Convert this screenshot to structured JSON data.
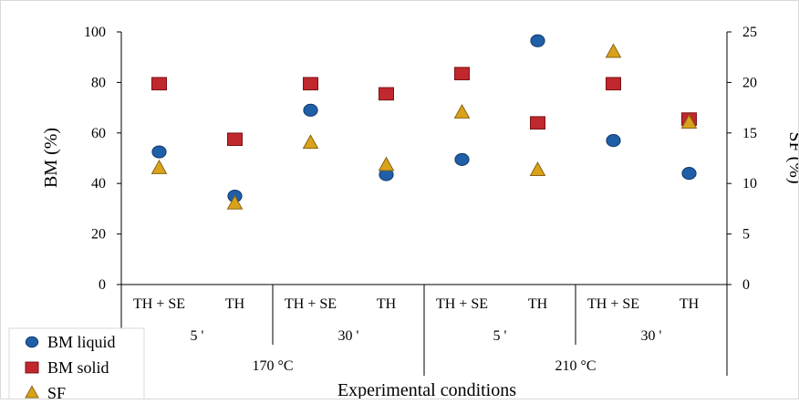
{
  "chart_data": {
    "type": "scatter",
    "xlabel": "Experimental conditions",
    "ylabel_left": "BM (%)",
    "ylabel_right": "SF (%)",
    "ylim_left": [
      0,
      100
    ],
    "ylim_right": [
      0,
      25
    ],
    "yticks_left": [
      "0",
      "20",
      "40",
      "60",
      "80",
      "100"
    ],
    "yticks_right": [
      "0",
      "5",
      "10",
      "15",
      "20",
      "25"
    ],
    "categories": [
      "TH + SE",
      "TH",
      "TH + SE",
      "TH",
      "TH + SE",
      "TH",
      "TH + SE",
      "TH"
    ],
    "time_groups": [
      "5 '",
      "30 '",
      "5 '",
      "30 '"
    ],
    "temperature_groups": [
      "170 °C",
      "210 °C"
    ],
    "grid": false,
    "legend_position": "bottom-left",
    "series": [
      {
        "name": "BM liquid",
        "axis": "left",
        "marker": "circle",
        "color": "#1f5fa8",
        "values": [
          52.5,
          35,
          69,
          43.5,
          49.5,
          96.5,
          57,
          44
        ]
      },
      {
        "name": "BM solid",
        "axis": "left",
        "marker": "square",
        "color": "#c0282d",
        "values": [
          79.5,
          57.5,
          79.5,
          75.5,
          83.5,
          64,
          79.5,
          65.5
        ]
      },
      {
        "name": "SF",
        "axis": "right",
        "marker": "triangle",
        "color": "#d9a21b",
        "values": [
          11.5,
          8,
          14,
          11.8,
          17,
          11.3,
          23,
          16
        ]
      }
    ]
  }
}
